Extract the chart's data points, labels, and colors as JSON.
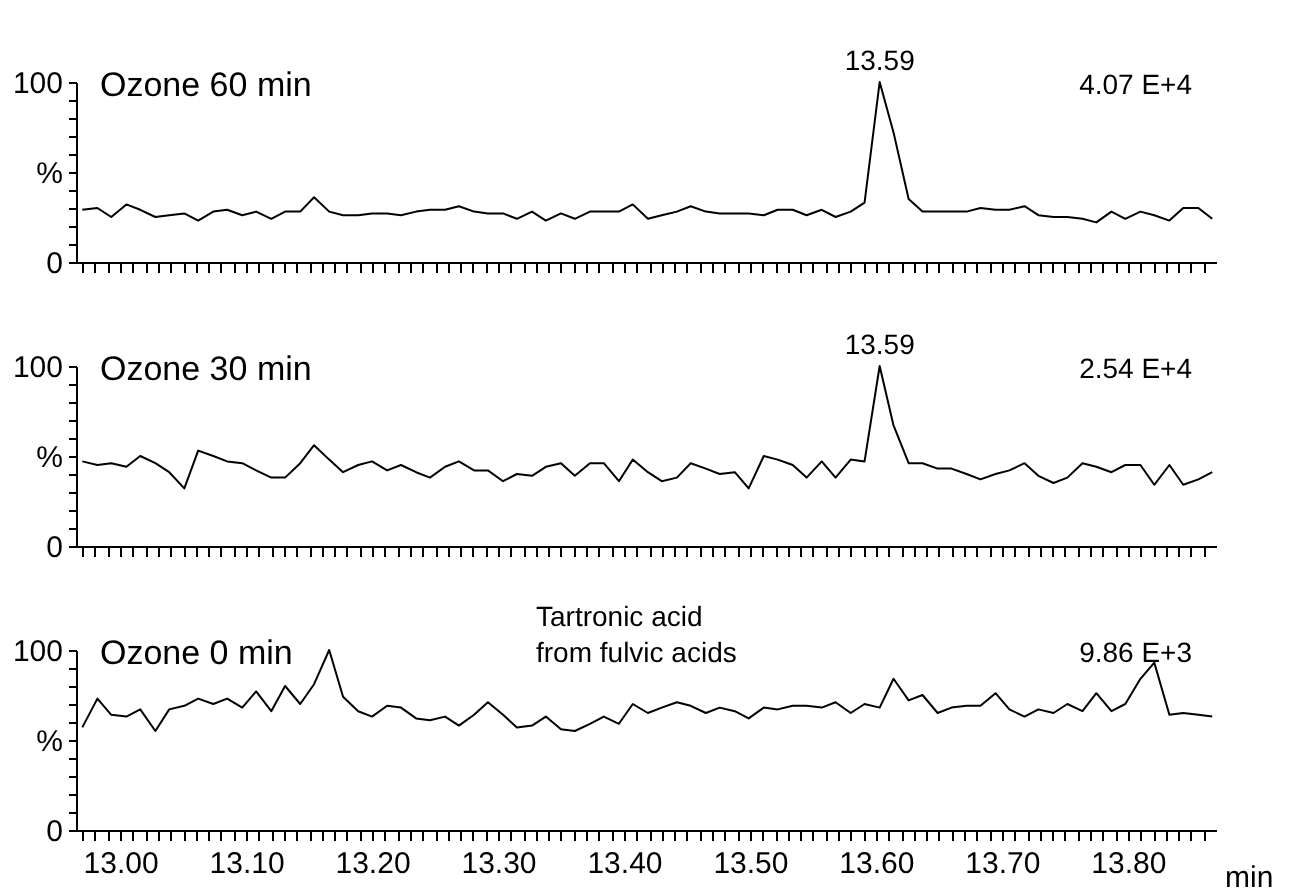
{
  "chart_data": [
    {
      "type": "line",
      "xlim": [
        12.965,
        13.87
      ],
      "ylim": [
        0,
        100
      ],
      "tick_labels": "y",
      "grid": false,
      "marker": "none",
      "line_style": "solid",
      "yticks": [
        0,
        {
          "value": 10,
          "label": null
        },
        {
          "value": 20,
          "label": null
        },
        {
          "value": 30,
          "label": null
        },
        {
          "value": 40,
          "label": null
        },
        {
          "value": 50,
          "label": "%"
        },
        {
          "value": 60,
          "label": null
        },
        {
          "value": 70,
          "label": null
        },
        {
          "value": 80,
          "label": null
        },
        {
          "value": 90,
          "label": null
        },
        100
      ],
      "xticks": [
        {
          "value": 12.97,
          "label": null
        },
        {
          "value": 12.98,
          "label": null
        },
        {
          "value": 12.99,
          "label": null
        },
        {
          "value": 13.0,
          "label": null
        },
        {
          "value": 13.01,
          "label": null
        },
        {
          "value": 13.02,
          "label": null
        },
        {
          "value": 13.03,
          "label": null
        },
        {
          "value": 13.04,
          "label": null
        },
        {
          "value": 13.05,
          "label": null
        },
        {
          "value": 13.06,
          "label": null
        },
        {
          "value": 13.07,
          "label": null
        },
        {
          "value": 13.08,
          "label": null
        },
        {
          "value": 13.09,
          "label": null
        },
        {
          "value": 13.1,
          "label": null
        },
        {
          "value": 13.11,
          "label": null
        },
        {
          "value": 13.12,
          "label": null
        },
        {
          "value": 13.13,
          "label": null
        },
        {
          "value": 13.14,
          "label": null
        },
        {
          "value": 13.15,
          "label": null
        },
        {
          "value": 13.16,
          "label": null
        },
        {
          "value": 13.17,
          "label": null
        },
        {
          "value": 13.18,
          "label": null
        },
        {
          "value": 13.19,
          "label": null
        },
        {
          "value": 13.2,
          "label": null
        },
        {
          "value": 13.21,
          "label": null
        },
        {
          "value": 13.22,
          "label": null
        },
        {
          "value": 13.23,
          "label": null
        },
        {
          "value": 13.24,
          "label": null
        },
        {
          "value": 13.25,
          "label": null
        },
        {
          "value": 13.26,
          "label": null
        },
        {
          "value": 13.27,
          "label": null
        },
        {
          "value": 13.28,
          "label": null
        },
        {
          "value": 13.29,
          "label": null
        },
        {
          "value": 13.3,
          "label": null
        },
        {
          "value": 13.31,
          "label": null
        },
        {
          "value": 13.32,
          "label": null
        },
        {
          "value": 13.33,
          "label": null
        },
        {
          "value": 13.34,
          "label": null
        },
        {
          "value": 13.35,
          "label": null
        },
        {
          "value": 13.36,
          "label": null
        },
        {
          "value": 13.37,
          "label": null
        },
        {
          "value": 13.38,
          "label": null
        },
        {
          "value": 13.39,
          "label": null
        },
        {
          "value": 13.4,
          "label": null
        },
        {
          "value": 13.41,
          "label": null
        },
        {
          "value": 13.42,
          "label": null
        },
        {
          "value": 13.43,
          "label": null
        },
        {
          "value": 13.44,
          "label": null
        },
        {
          "value": 13.45,
          "label": null
        },
        {
          "value": 13.46,
          "label": null
        },
        {
          "value": 13.47,
          "label": null
        },
        {
          "value": 13.48,
          "label": null
        },
        {
          "value": 13.49,
          "label": null
        },
        {
          "value": 13.5,
          "label": null
        },
        {
          "value": 13.51,
          "label": null
        },
        {
          "value": 13.52,
          "label": null
        },
        {
          "value": 13.53,
          "label": null
        },
        {
          "value": 13.54,
          "label": null
        },
        {
          "value": 13.55,
          "label": null
        },
        {
          "value": 13.56,
          "label": null
        },
        {
          "value": 13.57,
          "label": null
        },
        {
          "value": 13.58,
          "label": null
        },
        {
          "value": 13.59,
          "label": null
        },
        {
          "value": 13.6,
          "label": null
        },
        {
          "value": 13.61,
          "label": null
        },
        {
          "value": 13.62,
          "label": null
        },
        {
          "value": 13.63,
          "label": null
        },
        {
          "value": 13.64,
          "label": null
        },
        {
          "value": 13.65,
          "label": null
        },
        {
          "value": 13.66,
          "label": null
        },
        {
          "value": 13.67,
          "label": null
        },
        {
          "value": 13.68,
          "label": null
        },
        {
          "value": 13.69,
          "label": null
        },
        {
          "value": 13.7,
          "label": null
        },
        {
          "value": 13.71,
          "label": null
        },
        {
          "value": 13.72,
          "label": null
        },
        {
          "value": 13.73,
          "label": null
        },
        {
          "value": 13.74,
          "label": null
        },
        {
          "value": 13.75,
          "label": null
        },
        {
          "value": 13.76,
          "label": null
        },
        {
          "value": 13.77,
          "label": null
        },
        {
          "value": 13.78,
          "label": null
        },
        {
          "value": 13.79,
          "label": null
        },
        {
          "value": 13.8,
          "label": null
        },
        {
          "value": 13.81,
          "label": null
        },
        {
          "value": 13.82,
          "label": null
        },
        {
          "value": 13.83,
          "label": null
        },
        {
          "value": 13.84,
          "label": null
        },
        {
          "value": 13.85,
          "label": null
        },
        {
          "value": 13.86,
          "label": null
        }
      ],
      "x": [
        12.97,
        12.982,
        12.993,
        13.005,
        13.016,
        13.028,
        13.039,
        13.051,
        13.062,
        13.074,
        13.085,
        13.097,
        13.108,
        13.12,
        13.131,
        13.143,
        13.154,
        13.166,
        13.177,
        13.189,
        13.2,
        13.212,
        13.223,
        13.235,
        13.246,
        13.258,
        13.269,
        13.281,
        13.292,
        13.304,
        13.315,
        13.327,
        13.338,
        13.35,
        13.361,
        13.373,
        13.384,
        13.396,
        13.407,
        13.419,
        13.43,
        13.442,
        13.453,
        13.465,
        13.476,
        13.488,
        13.499,
        13.511,
        13.522,
        13.534,
        13.545,
        13.557,
        13.568,
        13.58,
        13.591,
        13.603,
        13.614,
        13.626,
        13.637,
        13.649,
        13.66,
        13.672,
        13.683,
        13.695,
        13.706,
        13.718,
        13.729,
        13.741,
        13.752,
        13.764,
        13.775,
        13.787,
        13.798,
        13.81,
        13.821,
        13.833,
        13.844,
        13.856,
        13.867
      ],
      "series": [
        {
          "color": "#000000",
          "values": [
            29,
            30,
            25,
            32,
            29,
            25,
            26,
            27,
            23,
            28,
            29,
            26,
            28,
            24,
            28,
            28,
            36,
            28,
            26,
            26,
            27,
            27,
            26,
            28,
            29,
            29,
            31,
            28,
            27,
            27,
            24,
            28,
            23,
            27,
            24,
            28,
            28,
            28,
            32,
            24,
            26,
            28,
            31,
            28,
            27,
            27,
            27,
            26,
            29,
            29,
            26,
            29,
            25,
            28,
            33,
            100,
            72,
            35,
            28,
            28,
            28,
            28,
            30,
            29,
            29,
            31,
            26,
            25,
            25,
            24,
            22,
            28,
            24,
            28,
            26,
            23,
            30,
            30,
            24
          ]
        }
      ],
      "annotations": [
        "Ozone   60 min",
        {
          "text": "13.59",
          "x": 13.603,
          "y": 100
        },
        "4.07 E+4"
      ]
    },
    {
      "type": "line",
      "xlim": [
        12.965,
        13.87
      ],
      "ylim": [
        0,
        100
      ],
      "tick_labels": "y",
      "grid": false,
      "marker": "none",
      "line_style": "solid",
      "yticks": [
        0,
        {
          "value": 10,
          "label": null
        },
        {
          "value": 20,
          "label": null
        },
        {
          "value": 30,
          "label": null
        },
        {
          "value": 40,
          "label": null
        },
        {
          "value": 50,
          "label": "%"
        },
        {
          "value": 60,
          "label": null
        },
        {
          "value": 70,
          "label": null
        },
        {
          "value": 80,
          "label": null
        },
        {
          "value": 90,
          "label": null
        },
        100
      ],
      "xticks": [
        {
          "value": 12.97,
          "label": null
        },
        {
          "value": 12.98,
          "label": null
        },
        {
          "value": 12.99,
          "label": null
        },
        {
          "value": 13.0,
          "label": null
        },
        {
          "value": 13.01,
          "label": null
        },
        {
          "value": 13.02,
          "label": null
        },
        {
          "value": 13.03,
          "label": null
        },
        {
          "value": 13.04,
          "label": null
        },
        {
          "value": 13.05,
          "label": null
        },
        {
          "value": 13.06,
          "label": null
        },
        {
          "value": 13.07,
          "label": null
        },
        {
          "value": 13.08,
          "label": null
        },
        {
          "value": 13.09,
          "label": null
        },
        {
          "value": 13.1,
          "label": null
        },
        {
          "value": 13.11,
          "label": null
        },
        {
          "value": 13.12,
          "label": null
        },
        {
          "value": 13.13,
          "label": null
        },
        {
          "value": 13.14,
          "label": null
        },
        {
          "value": 13.15,
          "label": null
        },
        {
          "value": 13.16,
          "label": null
        },
        {
          "value": 13.17,
          "label": null
        },
        {
          "value": 13.18,
          "label": null
        },
        {
          "value": 13.19,
          "label": null
        },
        {
          "value": 13.2,
          "label": null
        },
        {
          "value": 13.21,
          "label": null
        },
        {
          "value": 13.22,
          "label": null
        },
        {
          "value": 13.23,
          "label": null
        },
        {
          "value": 13.24,
          "label": null
        },
        {
          "value": 13.25,
          "label": null
        },
        {
          "value": 13.26,
          "label": null
        },
        {
          "value": 13.27,
          "label": null
        },
        {
          "value": 13.28,
          "label": null
        },
        {
          "value": 13.29,
          "label": null
        },
        {
          "value": 13.3,
          "label": null
        },
        {
          "value": 13.31,
          "label": null
        },
        {
          "value": 13.32,
          "label": null
        },
        {
          "value": 13.33,
          "label": null
        },
        {
          "value": 13.34,
          "label": null
        },
        {
          "value": 13.35,
          "label": null
        },
        {
          "value": 13.36,
          "label": null
        },
        {
          "value": 13.37,
          "label": null
        },
        {
          "value": 13.38,
          "label": null
        },
        {
          "value": 13.39,
          "label": null
        },
        {
          "value": 13.4,
          "label": null
        },
        {
          "value": 13.41,
          "label": null
        },
        {
          "value": 13.42,
          "label": null
        },
        {
          "value": 13.43,
          "label": null
        },
        {
          "value": 13.44,
          "label": null
        },
        {
          "value": 13.45,
          "label": null
        },
        {
          "value": 13.46,
          "label": null
        },
        {
          "value": 13.47,
          "label": null
        },
        {
          "value": 13.48,
          "label": null
        },
        {
          "value": 13.49,
          "label": null
        },
        {
          "value": 13.5,
          "label": null
        },
        {
          "value": 13.51,
          "label": null
        },
        {
          "value": 13.52,
          "label": null
        },
        {
          "value": 13.53,
          "label": null
        },
        {
          "value": 13.54,
          "label": null
        },
        {
          "value": 13.55,
          "label": null
        },
        {
          "value": 13.56,
          "label": null
        },
        {
          "value": 13.57,
          "label": null
        },
        {
          "value": 13.58,
          "label": null
        },
        {
          "value": 13.59,
          "label": null
        },
        {
          "value": 13.6,
          "label": null
        },
        {
          "value": 13.61,
          "label": null
        },
        {
          "value": 13.62,
          "label": null
        },
        {
          "value": 13.63,
          "label": null
        },
        {
          "value": 13.64,
          "label": null
        },
        {
          "value": 13.65,
          "label": null
        },
        {
          "value": 13.66,
          "label": null
        },
        {
          "value": 13.67,
          "label": null
        },
        {
          "value": 13.68,
          "label": null
        },
        {
          "value": 13.69,
          "label": null
        },
        {
          "value": 13.7,
          "label": null
        },
        {
          "value": 13.71,
          "label": null
        },
        {
          "value": 13.72,
          "label": null
        },
        {
          "value": 13.73,
          "label": null
        },
        {
          "value": 13.74,
          "label": null
        },
        {
          "value": 13.75,
          "label": null
        },
        {
          "value": 13.76,
          "label": null
        },
        {
          "value": 13.77,
          "label": null
        },
        {
          "value": 13.78,
          "label": null
        },
        {
          "value": 13.79,
          "label": null
        },
        {
          "value": 13.8,
          "label": null
        },
        {
          "value": 13.81,
          "label": null
        },
        {
          "value": 13.82,
          "label": null
        },
        {
          "value": 13.83,
          "label": null
        },
        {
          "value": 13.84,
          "label": null
        },
        {
          "value": 13.85,
          "label": null
        },
        {
          "value": 13.86,
          "label": null
        }
      ],
      "x": [
        12.97,
        12.982,
        12.993,
        13.005,
        13.016,
        13.028,
        13.039,
        13.051,
        13.062,
        13.074,
        13.085,
        13.097,
        13.108,
        13.12,
        13.131,
        13.143,
        13.154,
        13.166,
        13.177,
        13.189,
        13.2,
        13.212,
        13.223,
        13.235,
        13.246,
        13.258,
        13.269,
        13.281,
        13.292,
        13.304,
        13.315,
        13.327,
        13.338,
        13.35,
        13.361,
        13.373,
        13.384,
        13.396,
        13.407,
        13.419,
        13.43,
        13.442,
        13.453,
        13.465,
        13.476,
        13.488,
        13.499,
        13.511,
        13.522,
        13.534,
        13.545,
        13.557,
        13.568,
        13.58,
        13.591,
        13.603,
        13.614,
        13.626,
        13.637,
        13.649,
        13.66,
        13.672,
        13.683,
        13.695,
        13.706,
        13.718,
        13.729,
        13.741,
        13.752,
        13.764,
        13.775,
        13.787,
        13.798,
        13.81,
        13.821,
        13.833,
        13.844,
        13.856,
        13.867
      ],
      "series": [
        {
          "color": "#000000",
          "values": [
            47,
            45,
            46,
            44,
            50,
            46,
            41,
            32,
            53,
            50,
            47,
            46,
            42,
            38,
            38,
            46,
            56,
            48,
            41,
            45,
            47,
            42,
            45,
            41,
            38,
            44,
            47,
            42,
            42,
            36,
            40,
            39,
            44,
            46,
            39,
            46,
            46,
            36,
            48,
            41,
            36,
            38,
            46,
            43,
            40,
            41,
            32,
            50,
            48,
            45,
            38,
            47,
            38,
            48,
            47,
            100,
            67,
            46,
            46,
            43,
            43,
            40,
            37,
            40,
            42,
            46,
            39,
            35,
            38,
            46,
            44,
            41,
            45,
            45,
            34,
            45,
            34,
            37,
            41
          ]
        }
      ],
      "annotations": [
        "Ozone   30 min",
        {
          "text": "13.59",
          "x": 13.603,
          "y": 100
        },
        "2.54 E+4"
      ]
    },
    {
      "type": "line",
      "xlim": [
        12.965,
        13.87
      ],
      "ylim": [
        0,
        100
      ],
      "xlabel": "min",
      "grid": false,
      "marker": "none",
      "line_style": "solid",
      "yticks": [
        0,
        {
          "value": 10,
          "label": null
        },
        {
          "value": 20,
          "label": null
        },
        {
          "value": 30,
          "label": null
        },
        {
          "value": 40,
          "label": null
        },
        {
          "value": 50,
          "label": "%"
        },
        {
          "value": 60,
          "label": null
        },
        {
          "value": 70,
          "label": null
        },
        {
          "value": 80,
          "label": null
        },
        {
          "value": 90,
          "label": null
        },
        100
      ],
      "xticks": [
        {
          "value": 12.97,
          "label": null
        },
        {
          "value": 12.98,
          "label": null
        },
        {
          "value": 12.99,
          "label": null
        },
        {
          "value": 13.0,
          "label": "13.00"
        },
        {
          "value": 13.01,
          "label": null
        },
        {
          "value": 13.02,
          "label": null
        },
        {
          "value": 13.03,
          "label": null
        },
        {
          "value": 13.04,
          "label": null
        },
        {
          "value": 13.05,
          "label": null
        },
        {
          "value": 13.06,
          "label": null
        },
        {
          "value": 13.07,
          "label": null
        },
        {
          "value": 13.08,
          "label": null
        },
        {
          "value": 13.09,
          "label": null
        },
        {
          "value": 13.1,
          "label": "13.10"
        },
        {
          "value": 13.11,
          "label": null
        },
        {
          "value": 13.12,
          "label": null
        },
        {
          "value": 13.13,
          "label": null
        },
        {
          "value": 13.14,
          "label": null
        },
        {
          "value": 13.15,
          "label": null
        },
        {
          "value": 13.16,
          "label": null
        },
        {
          "value": 13.17,
          "label": null
        },
        {
          "value": 13.18,
          "label": null
        },
        {
          "value": 13.19,
          "label": null
        },
        {
          "value": 13.2,
          "label": "13.20"
        },
        {
          "value": 13.21,
          "label": null
        },
        {
          "value": 13.22,
          "label": null
        },
        {
          "value": 13.23,
          "label": null
        },
        {
          "value": 13.24,
          "label": null
        },
        {
          "value": 13.25,
          "label": null
        },
        {
          "value": 13.26,
          "label": null
        },
        {
          "value": 13.27,
          "label": null
        },
        {
          "value": 13.28,
          "label": null
        },
        {
          "value": 13.29,
          "label": null
        },
        {
          "value": 13.3,
          "label": "13.30"
        },
        {
          "value": 13.31,
          "label": null
        },
        {
          "value": 13.32,
          "label": null
        },
        {
          "value": 13.33,
          "label": null
        },
        {
          "value": 13.34,
          "label": null
        },
        {
          "value": 13.35,
          "label": null
        },
        {
          "value": 13.36,
          "label": null
        },
        {
          "value": 13.37,
          "label": null
        },
        {
          "value": 13.38,
          "label": null
        },
        {
          "value": 13.39,
          "label": null
        },
        {
          "value": 13.4,
          "label": "13.40"
        },
        {
          "value": 13.41,
          "label": null
        },
        {
          "value": 13.42,
          "label": null
        },
        {
          "value": 13.43,
          "label": null
        },
        {
          "value": 13.44,
          "label": null
        },
        {
          "value": 13.45,
          "label": null
        },
        {
          "value": 13.46,
          "label": null
        },
        {
          "value": 13.47,
          "label": null
        },
        {
          "value": 13.48,
          "label": null
        },
        {
          "value": 13.49,
          "label": null
        },
        {
          "value": 13.5,
          "label": "13.50"
        },
        {
          "value": 13.51,
          "label": null
        },
        {
          "value": 13.52,
          "label": null
        },
        {
          "value": 13.53,
          "label": null
        },
        {
          "value": 13.54,
          "label": null
        },
        {
          "value": 13.55,
          "label": null
        },
        {
          "value": 13.56,
          "label": null
        },
        {
          "value": 13.57,
          "label": null
        },
        {
          "value": 13.58,
          "label": null
        },
        {
          "value": 13.59,
          "label": null
        },
        {
          "value": 13.6,
          "label": "13.60"
        },
        {
          "value": 13.61,
          "label": null
        },
        {
          "value": 13.62,
          "label": null
        },
        {
          "value": 13.63,
          "label": null
        },
        {
          "value": 13.64,
          "label": null
        },
        {
          "value": 13.65,
          "label": null
        },
        {
          "value": 13.66,
          "label": null
        },
        {
          "value": 13.67,
          "label": null
        },
        {
          "value": 13.68,
          "label": null
        },
        {
          "value": 13.69,
          "label": null
        },
        {
          "value": 13.7,
          "label": "13.70"
        },
        {
          "value": 13.71,
          "label": null
        },
        {
          "value": 13.72,
          "label": null
        },
        {
          "value": 13.73,
          "label": null
        },
        {
          "value": 13.74,
          "label": null
        },
        {
          "value": 13.75,
          "label": null
        },
        {
          "value": 13.76,
          "label": null
        },
        {
          "value": 13.77,
          "label": null
        },
        {
          "value": 13.78,
          "label": null
        },
        {
          "value": 13.79,
          "label": null
        },
        {
          "value": 13.8,
          "label": "13.80"
        },
        {
          "value": 13.81,
          "label": null
        },
        {
          "value": 13.82,
          "label": null
        },
        {
          "value": 13.83,
          "label": null
        },
        {
          "value": 13.84,
          "label": null
        },
        {
          "value": 13.85,
          "label": null
        },
        {
          "value": 13.86,
          "label": null
        }
      ],
      "x": [
        12.97,
        12.982,
        12.993,
        13.005,
        13.016,
        13.028,
        13.039,
        13.051,
        13.062,
        13.074,
        13.085,
        13.097,
        13.108,
        13.12,
        13.131,
        13.143,
        13.154,
        13.166,
        13.177,
        13.189,
        13.2,
        13.212,
        13.223,
        13.235,
        13.246,
        13.258,
        13.269,
        13.281,
        13.292,
        13.304,
        13.315,
        13.327,
        13.338,
        13.35,
        13.361,
        13.373,
        13.384,
        13.396,
        13.407,
        13.419,
        13.43,
        13.442,
        13.453,
        13.465,
        13.476,
        13.488,
        13.499,
        13.511,
        13.522,
        13.534,
        13.545,
        13.557,
        13.568,
        13.58,
        13.591,
        13.603,
        13.614,
        13.626,
        13.637,
        13.649,
        13.66,
        13.672,
        13.683,
        13.695,
        13.706,
        13.718,
        13.729,
        13.741,
        13.752,
        13.764,
        13.775,
        13.787,
        13.798,
        13.81,
        13.821,
        13.833,
        13.844,
        13.856,
        13.867
      ],
      "series": [
        {
          "color": "#000000",
          "values": [
            57,
            73,
            64,
            63,
            67,
            55,
            67,
            69,
            73,
            70,
            73,
            68,
            77,
            66,
            80,
            70,
            81,
            100,
            74,
            66,
            63,
            69,
            68,
            62,
            61,
            63,
            58,
            64,
            71,
            64,
            57,
            58,
            63,
            56,
            55,
            59,
            63,
            59,
            70,
            65,
            68,
            71,
            69,
            65,
            68,
            66,
            62,
            68,
            67,
            69,
            69,
            68,
            71,
            65,
            70,
            68,
            84,
            72,
            75,
            65,
            68,
            69,
            69,
            76,
            67,
            63,
            67,
            65,
            70,
            66,
            76,
            66,
            70,
            84,
            93,
            64,
            65,
            64,
            63
          ]
        }
      ],
      "annotations": [
        "Ozone  0 min",
        "Tartronic acid\nfrom fulvic acids",
        "9.86 E+3"
      ]
    }
  ]
}
